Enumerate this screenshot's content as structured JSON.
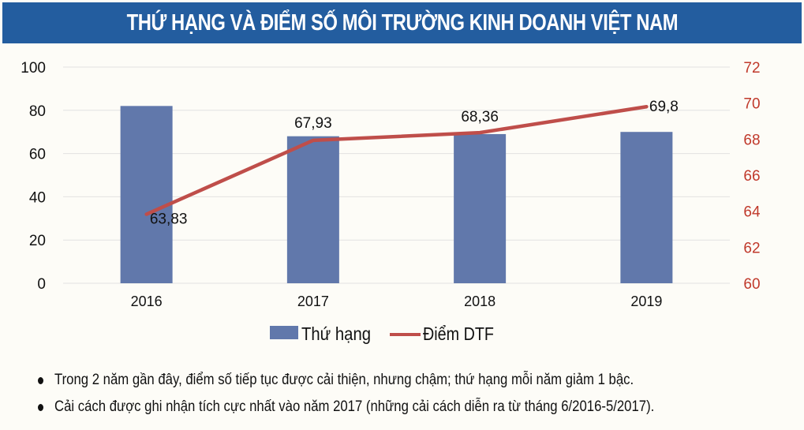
{
  "header": {
    "title": "THỨ HẠNG VÀ ĐIỂM SỐ MÔI TRƯỜNG KINH DOANH VIỆT NAM"
  },
  "colors": {
    "header_bg": "#235d9f",
    "bar": "#6178ab",
    "line": "#bf4e4a",
    "right_axis": "#c0392b"
  },
  "chart_data": {
    "type": "bar+line",
    "title": "THỨ HẠNG VÀ ĐIỂM SỐ MÔI TRƯỜNG KINH DOANH VIỆT NAM",
    "categories": [
      "2016",
      "2017",
      "2018",
      "2019"
    ],
    "series": [
      {
        "name": "Thứ hạng",
        "type": "bar",
        "axis": "left",
        "values": [
          82,
          68,
          69,
          70
        ]
      },
      {
        "name": "Điểm DTF",
        "type": "line",
        "axis": "right",
        "values": [
          63.83,
          67.93,
          68.36,
          69.8
        ],
        "labels": [
          "63,83",
          "67,93",
          "68,36",
          "69,8"
        ]
      }
    ],
    "left_axis": {
      "ticks": [
        "0",
        "20",
        "40",
        "60",
        "80",
        "100"
      ],
      "ylim": [
        0,
        100
      ]
    },
    "right_axis": {
      "ticks": [
        "60",
        "62",
        "64",
        "66",
        "68",
        "70",
        "72"
      ],
      "ylim": [
        60,
        72
      ]
    },
    "grid": true,
    "legend_position": "bottom"
  },
  "legend": {
    "bar_label": "Thứ hạng",
    "line_label": "Điểm DTF"
  },
  "notes": [
    "Trong 2 năm gần đây, điểm số tiếp tục được cải thiện, nhưng chậm; thứ hạng mỗi năm giảm 1 bậc.",
    "Cải cách được ghi nhận tích cực nhất vào năm 2017 (những cải cách diễn ra từ tháng 6/2016-5/2017)."
  ]
}
